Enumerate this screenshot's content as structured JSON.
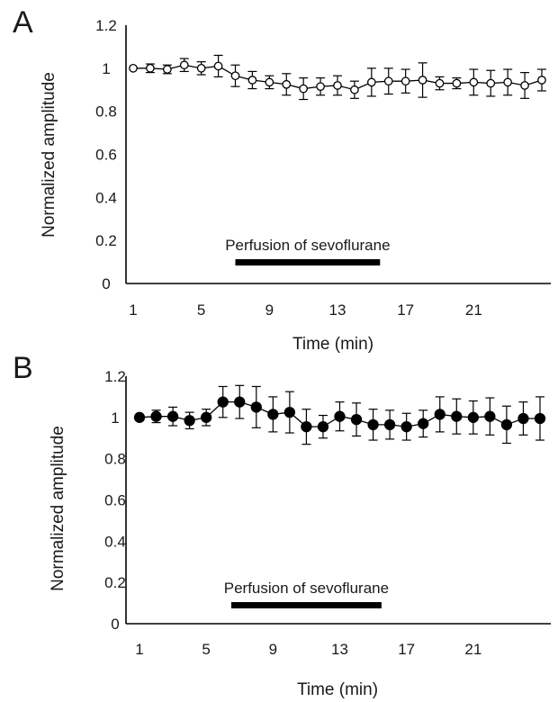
{
  "chart_data": [
    {
      "panel_label": "A",
      "type": "line",
      "xlabel": "Time (min)",
      "ylabel": "Normalized amplitude",
      "ylim": [
        0,
        1.2
      ],
      "xlim": [
        0.5,
        25.5
      ],
      "yticks": [
        "0",
        "0.2",
        "0.4",
        "0.6",
        "0.8",
        "1",
        "1.2"
      ],
      "xticks": [
        "1",
        "5",
        "9",
        "13",
        "17",
        "21"
      ],
      "marker": "open-circle",
      "bar_annotation": {
        "text": "Perfusion of sevoflurane",
        "x_start": 7,
        "x_end": 15.5
      },
      "series": [
        {
          "x": [
            1,
            2,
            3,
            4,
            5,
            6,
            7,
            8,
            9,
            10,
            11,
            12,
            13,
            14,
            15,
            16,
            17,
            18,
            19,
            20,
            21,
            22,
            23,
            24,
            25
          ],
          "values": [
            1.0,
            1.0,
            0.995,
            1.015,
            1.0,
            1.01,
            0.965,
            0.945,
            0.935,
            0.925,
            0.905,
            0.915,
            0.92,
            0.9,
            0.935,
            0.94,
            0.94,
            0.945,
            0.93,
            0.93,
            0.935,
            0.93,
            0.935,
            0.92,
            0.945
          ],
          "error": [
            0.0,
            0.02,
            0.02,
            0.03,
            0.03,
            0.05,
            0.05,
            0.04,
            0.03,
            0.05,
            0.05,
            0.04,
            0.045,
            0.04,
            0.065,
            0.06,
            0.055,
            0.08,
            0.03,
            0.025,
            0.06,
            0.06,
            0.06,
            0.06,
            0.05
          ]
        }
      ]
    },
    {
      "panel_label": "B",
      "type": "line",
      "xlabel": "Time (min)",
      "ylabel": "Normalized amplitude",
      "ylim": [
        0,
        1.2
      ],
      "xlim": [
        0.5,
        25.5
      ],
      "yticks": [
        "0",
        "0.2",
        "0.4",
        "0.6",
        "0.8",
        "1",
        "1.2"
      ],
      "xticks": [
        "1",
        "5",
        "9",
        "13",
        "17",
        "21"
      ],
      "marker": "filled-circle",
      "bar_annotation": {
        "text": "Perfusion of sevoflurane",
        "x_start": 6.5,
        "x_end": 15.5
      },
      "series": [
        {
          "x": [
            1,
            2,
            3,
            4,
            5,
            6,
            7,
            8,
            9,
            10,
            11,
            12,
            13,
            14,
            15,
            16,
            17,
            18,
            19,
            20,
            21,
            22,
            23,
            24,
            25
          ],
          "values": [
            1.0,
            1.005,
            1.005,
            0.985,
            1.0,
            1.075,
            1.075,
            1.05,
            1.015,
            1.025,
            0.955,
            0.955,
            1.005,
            0.99,
            0.965,
            0.965,
            0.955,
            0.97,
            1.015,
            1.005,
            1.0,
            1.005,
            0.965,
            0.995,
            0.995
          ],
          "error": [
            0.0,
            0.03,
            0.045,
            0.04,
            0.04,
            0.075,
            0.08,
            0.1,
            0.085,
            0.1,
            0.085,
            0.055,
            0.07,
            0.08,
            0.075,
            0.07,
            0.065,
            0.065,
            0.085,
            0.085,
            0.08,
            0.09,
            0.09,
            0.08,
            0.105
          ]
        }
      ]
    }
  ]
}
